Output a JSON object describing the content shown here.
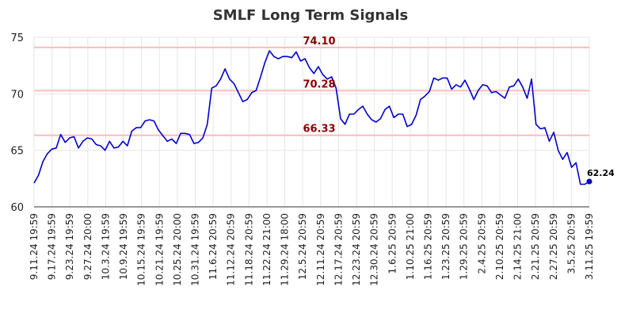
{
  "chart_data": {
    "type": "line",
    "title": "SMLF Long Term Signals",
    "ylim": [
      60,
      75
    ],
    "yticks": [
      "60",
      "65",
      "70",
      "75"
    ],
    "xtick_labels": [
      "9.11.24 19:59",
      "9.17.24 19:59",
      "9.23.24 19:59",
      "9.27.24 20:00",
      "10.3.24 19:59",
      "10.9.24 19:59",
      "10.15.24 19:59",
      "10.21.24 19:59",
      "10.25.24 20:00",
      "10.31.24 19:59",
      "11.6.24 20:59",
      "11.12.24 20:59",
      "11.18.24 20:59",
      "11.22.24 21:00",
      "11.29.24 18:00",
      "12.5.24 20:59",
      "12.11.24 20:59",
      "12.17.24 20:59",
      "12.23.24 20:59",
      "12.30.24 20:59",
      "1.6.25 20:59",
      "1.10.25 21:00",
      "1.16.25 20:59",
      "1.23.25 20:59",
      "1.29.25 20:59",
      "2.4.25 20:59",
      "2.10.25 20:59",
      "2.14.25 21:00",
      "2.21.25 20:59",
      "2.27.25 20:59",
      "3.5.25 20:59",
      "3.11.25 19:59"
    ],
    "grid": true,
    "colors": {
      "line": "#0000cc",
      "hline": "#ffbbbb",
      "hlabel": "#8b0000",
      "grid": "#e6e6e6"
    },
    "horizontal_lines": [
      {
        "value": 74.1,
        "label": "74.10"
      },
      {
        "value": 70.28,
        "label": "70.28"
      },
      {
        "value": 66.33,
        "label": "66.33"
      }
    ],
    "series": [
      {
        "values": [
          62.1,
          62.8,
          64.0,
          64.7,
          65.1,
          65.2,
          66.4,
          65.7,
          66.1,
          66.2,
          65.2,
          65.8,
          66.1,
          66.0,
          65.5,
          65.4,
          65.0,
          65.8,
          65.2,
          65.3,
          65.8,
          65.4,
          66.7,
          67.0,
          67.0,
          67.6,
          67.7,
          67.6,
          66.8,
          66.3,
          65.8,
          66.0,
          65.6,
          66.5,
          66.5,
          66.4,
          65.6,
          65.7,
          66.1,
          67.3,
          70.5,
          70.7,
          71.3,
          72.2,
          71.3,
          70.9,
          70.1,
          69.3,
          69.5,
          70.1,
          70.3,
          71.5,
          72.8,
          73.8,
          73.3,
          73.1,
          73.3,
          73.3,
          73.2,
          73.7,
          72.9,
          73.1,
          72.3,
          71.8,
          72.4,
          71.7,
          71.3,
          71.5,
          70.5,
          67.8,
          67.3,
          68.2,
          68.2,
          68.6,
          68.9,
          68.2,
          67.7,
          67.5,
          67.8,
          68.6,
          68.9,
          67.9,
          68.2,
          68.2,
          67.1,
          67.3,
          68.1,
          69.5,
          69.8,
          70.2,
          71.4,
          71.2,
          71.4,
          71.4,
          70.4,
          70.8,
          70.6,
          71.2,
          70.4,
          69.5,
          70.3,
          70.8,
          70.7,
          70.1,
          70.2,
          69.9,
          69.6,
          70.6,
          70.7,
          71.3,
          70.6,
          69.6,
          71.3,
          67.3,
          66.9,
          67.0,
          65.8,
          66.6,
          65.0,
          64.2,
          64.8,
          63.5,
          63.9,
          62.0,
          62.0,
          62.24
        ]
      }
    ],
    "last_value_label": "62.24"
  }
}
